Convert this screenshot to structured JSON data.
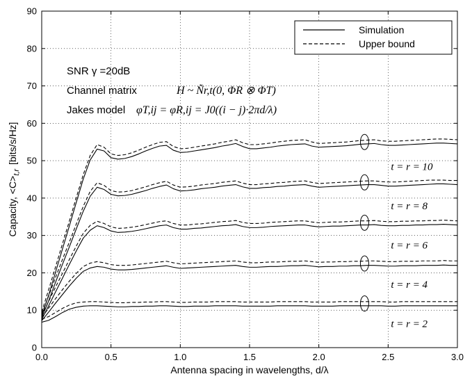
{
  "chart_data": {
    "type": "line",
    "xlabel": "Antenna spacing in wavelengths, d/λ",
    "ylabel": "Capacity, <C>t,r [bits/s/Hz]",
    "ylabel_parts": {
      "main": "Capacity, <C>",
      "sub": "t,r",
      "unit": "[bits/s/Hz]"
    },
    "xlim": [
      0,
      3
    ],
    "ylim": [
      0,
      90
    ],
    "xticks": [
      0,
      0.5,
      1,
      1.5,
      2,
      2.5,
      3
    ],
    "xtick_labels": [
      "0.0",
      "0.5",
      "1.0",
      "1.5",
      "2.0",
      "2.5",
      "3.0"
    ],
    "yticks": [
      0,
      10,
      20,
      30,
      40,
      50,
      60,
      70,
      80,
      90
    ],
    "ytick_labels": [
      "0",
      "10",
      "20",
      "30",
      "40",
      "50",
      "60",
      "70",
      "80",
      "90"
    ],
    "grid": true,
    "legend": {
      "position": "top-right",
      "entries": [
        {
          "label": "Simulation",
          "style": "solid"
        },
        {
          "label": "Upper bound",
          "style": "dashed"
        }
      ]
    },
    "annotations": {
      "snr": "SNR γ =20dB",
      "channel_prefix": "Channel matrix",
      "channel_math": "H ~ Ñr,t(0, ΦR ⊗ ΦT)",
      "jakes_prefix": "Jakes model",
      "jakes_math": "φT,ij = φR,ij = J0((i − j)·2πd/λ)"
    },
    "x": [
      0,
      0.05,
      0.1,
      0.15,
      0.2,
      0.25,
      0.3,
      0.35,
      0.4,
      0.45,
      0.5,
      0.55,
      0.6,
      0.65,
      0.7,
      0.75,
      0.8,
      0.85,
      0.9,
      0.95,
      1.0,
      1.05,
      1.1,
      1.15,
      1.2,
      1.25,
      1.3,
      1.35,
      1.4,
      1.45,
      1.5,
      1.55,
      1.6,
      1.65,
      1.7,
      1.75,
      1.8,
      1.85,
      1.9,
      1.95,
      2.0,
      2.05,
      2.1,
      2.15,
      2.2,
      2.25,
      2.3,
      2.35,
      2.4,
      2.45,
      2.5,
      2.55,
      2.6,
      2.65,
      2.7,
      2.75,
      2.8,
      2.85,
      2.9,
      2.95,
      3.0
    ],
    "series": [
      {
        "curve_label": "t = r = 10",
        "style": "solid",
        "values": [
          8.5,
          14.0,
          20.2,
          26.4,
          32.6,
          38.9,
          45.1,
          50.2,
          53.1,
          52.6,
          50.8,
          50.4,
          50.6,
          51.1,
          51.8,
          52.6,
          53.3,
          53.9,
          54.1,
          52.8,
          52.2,
          52.3,
          52.6,
          52.9,
          53.2,
          53.5,
          53.9,
          54.2,
          54.6,
          53.8,
          53.2,
          53.2,
          53.4,
          53.6,
          53.9,
          54.1,
          54.3,
          54.4,
          54.5,
          53.9,
          53.6,
          53.7,
          53.8,
          53.9,
          54.0,
          54.2,
          54.4,
          54.5,
          54.6,
          54.3,
          54.1,
          54.1,
          54.2,
          54.3,
          54.4,
          54.5,
          54.6,
          54.7,
          54.7,
          54.6,
          54.5
        ]
      },
      {
        "curve_label": "t = r = 10",
        "style": "dashed",
        "values": [
          9.5,
          15.5,
          21.6,
          27.8,
          33.9,
          40.2,
          46.3,
          51.4,
          54.3,
          53.6,
          51.8,
          51.4,
          51.6,
          52.1,
          52.8,
          53.6,
          54.3,
          54.9,
          55.1,
          53.8,
          53.2,
          53.3,
          53.6,
          53.9,
          54.2,
          54.5,
          54.9,
          55.2,
          55.6,
          54.8,
          54.3,
          54.3,
          54.5,
          54.7,
          55.0,
          55.2,
          55.4,
          55.5,
          55.6,
          55.0,
          54.6,
          54.7,
          54.8,
          54.9,
          55.0,
          55.2,
          55.4,
          55.5,
          55.6,
          55.3,
          55.2,
          55.2,
          55.3,
          55.4,
          55.5,
          55.6,
          55.7,
          55.8,
          55.8,
          55.7,
          55.6
        ]
      },
      {
        "curve_label": "t = r = 8",
        "style": "solid",
        "values": [
          8.0,
          12.5,
          17.5,
          22.3,
          27.0,
          31.8,
          36.5,
          40.5,
          42.9,
          42.3,
          41.0,
          40.6,
          40.7,
          41.0,
          41.5,
          42.0,
          42.6,
          43.1,
          43.5,
          42.5,
          41.9,
          42.0,
          42.2,
          42.5,
          42.7,
          42.9,
          43.2,
          43.4,
          43.6,
          43.0,
          42.6,
          42.6,
          42.8,
          42.9,
          43.1,
          43.2,
          43.4,
          43.5,
          43.6,
          43.2,
          42.9,
          43.0,
          43.1,
          43.2,
          43.3,
          43.4,
          43.5,
          43.6,
          43.6,
          43.4,
          43.2,
          43.2,
          43.3,
          43.4,
          43.5,
          43.6,
          43.7,
          43.8,
          43.8,
          43.7,
          43.6
        ]
      },
      {
        "curve_label": "t = r = 8",
        "style": "dashed",
        "values": [
          9.0,
          13.8,
          18.8,
          23.6,
          28.3,
          33.1,
          37.8,
          41.8,
          44.1,
          43.4,
          42.0,
          41.6,
          41.7,
          42.0,
          42.5,
          43.0,
          43.6,
          44.1,
          44.5,
          43.5,
          42.9,
          43.0,
          43.2,
          43.5,
          43.7,
          43.9,
          44.2,
          44.4,
          44.6,
          44.0,
          43.6,
          43.6,
          43.8,
          43.9,
          44.1,
          44.2,
          44.4,
          44.5,
          44.6,
          44.2,
          43.9,
          44.0,
          44.1,
          44.2,
          44.3,
          44.4,
          44.5,
          44.6,
          44.6,
          44.4,
          44.3,
          44.3,
          44.4,
          44.5,
          44.6,
          44.7,
          44.8,
          44.8,
          44.8,
          44.7,
          44.7
        ]
      },
      {
        "curve_label": "t = r = 6",
        "style": "solid",
        "values": [
          7.5,
          11.2,
          14.9,
          18.6,
          22.3,
          25.9,
          29.3,
          31.4,
          32.6,
          32.1,
          31.2,
          30.8,
          30.9,
          31.1,
          31.4,
          31.8,
          32.2,
          32.6,
          32.8,
          32.1,
          31.7,
          31.7,
          31.9,
          32.0,
          32.2,
          32.4,
          32.6,
          32.7,
          32.9,
          32.4,
          32.1,
          32.1,
          32.2,
          32.4,
          32.5,
          32.6,
          32.7,
          32.8,
          32.8,
          32.5,
          32.3,
          32.4,
          32.5,
          32.5,
          32.6,
          32.7,
          32.8,
          32.8,
          32.9,
          32.7,
          32.6,
          32.6,
          32.7,
          32.7,
          32.8,
          32.8,
          32.9,
          32.9,
          33.0,
          32.9,
          32.8
        ]
      },
      {
        "curve_label": "t = r = 6",
        "style": "dashed",
        "values": [
          8.5,
          12.4,
          16.2,
          19.9,
          23.6,
          27.2,
          30.6,
          32.7,
          33.8,
          33.2,
          32.3,
          31.9,
          32.0,
          32.2,
          32.5,
          32.9,
          33.3,
          33.7,
          33.9,
          33.2,
          32.8,
          32.8,
          33.0,
          33.1,
          33.3,
          33.5,
          33.7,
          33.8,
          34.0,
          33.5,
          33.2,
          33.2,
          33.3,
          33.5,
          33.6,
          33.7,
          33.8,
          33.9,
          33.9,
          33.6,
          33.4,
          33.5,
          33.6,
          33.6,
          33.7,
          33.8,
          33.9,
          33.9,
          34.0,
          33.8,
          33.7,
          33.7,
          33.8,
          33.8,
          33.9,
          33.9,
          34.0,
          34.0,
          34.1,
          34.0,
          33.9
        ]
      },
      {
        "curve_label": "t = r = 4",
        "style": "solid",
        "values": [
          7.2,
          9.5,
          11.9,
          14.2,
          16.5,
          18.6,
          20.4,
          21.3,
          21.7,
          21.5,
          21.0,
          20.8,
          20.8,
          20.9,
          21.1,
          21.3,
          21.5,
          21.7,
          21.9,
          21.5,
          21.2,
          21.3,
          21.4,
          21.5,
          21.6,
          21.7,
          21.8,
          21.9,
          22.0,
          21.7,
          21.5,
          21.5,
          21.6,
          21.7,
          21.7,
          21.8,
          21.9,
          21.9,
          22.0,
          21.8,
          21.6,
          21.7,
          21.7,
          21.8,
          21.8,
          21.9,
          21.9,
          22.0,
          22.0,
          21.9,
          21.8,
          21.8,
          21.9,
          21.9,
          21.9,
          22.0,
          22.0,
          22.0,
          22.1,
          22.0,
          22.0
        ]
      },
      {
        "curve_label": "t = r = 4",
        "style": "dashed",
        "values": [
          8.0,
          10.6,
          13.1,
          15.5,
          17.8,
          19.9,
          21.7,
          22.6,
          23.0,
          22.7,
          22.2,
          22.0,
          22.0,
          22.1,
          22.3,
          22.5,
          22.7,
          22.9,
          23.1,
          22.7,
          22.4,
          22.5,
          22.6,
          22.7,
          22.8,
          22.9,
          23.0,
          23.1,
          23.2,
          22.9,
          22.7,
          22.7,
          22.8,
          22.9,
          22.9,
          23.0,
          23.1,
          23.1,
          23.2,
          23.0,
          22.8,
          22.9,
          22.9,
          23.0,
          23.0,
          23.1,
          23.1,
          23.2,
          23.2,
          23.1,
          23.0,
          23.0,
          23.1,
          23.1,
          23.1,
          23.2,
          23.2,
          23.2,
          23.3,
          23.2,
          23.2
        ]
      },
      {
        "curve_label": "t = r = 2",
        "style": "solid",
        "values": [
          6.8,
          7.3,
          8.3,
          9.4,
          10.3,
          10.8,
          11.1,
          11.2,
          11.2,
          11.1,
          11.0,
          10.9,
          10.9,
          11.0,
          11.0,
          11.1,
          11.1,
          11.2,
          11.2,
          11.1,
          11.0,
          11.0,
          11.1,
          11.1,
          11.1,
          11.2,
          11.2,
          11.2,
          11.2,
          11.1,
          11.1,
          11.1,
          11.1,
          11.1,
          11.2,
          11.2,
          11.2,
          11.2,
          11.2,
          11.1,
          11.1,
          11.1,
          11.1,
          11.2,
          11.2,
          11.2,
          11.2,
          11.2,
          11.2,
          11.2,
          11.1,
          11.1,
          11.2,
          11.2,
          11.2,
          11.2,
          11.2,
          11.2,
          11.2,
          11.2,
          11.2
        ]
      },
      {
        "curve_label": "t = r = 2",
        "style": "dashed",
        "values": [
          7.6,
          8.3,
          9.4,
          10.5,
          11.4,
          12.0,
          12.2,
          12.3,
          12.3,
          12.2,
          12.1,
          12.0,
          12.0,
          12.1,
          12.1,
          12.2,
          12.2,
          12.3,
          12.3,
          12.2,
          12.1,
          12.1,
          12.2,
          12.2,
          12.2,
          12.3,
          12.3,
          12.3,
          12.3,
          12.2,
          12.2,
          12.2,
          12.2,
          12.2,
          12.3,
          12.3,
          12.3,
          12.3,
          12.3,
          12.2,
          12.2,
          12.2,
          12.2,
          12.3,
          12.3,
          12.3,
          12.3,
          12.3,
          12.3,
          12.3,
          12.2,
          12.2,
          12.3,
          12.3,
          12.3,
          12.3,
          12.3,
          12.3,
          12.3,
          12.3,
          12.3
        ]
      }
    ],
    "curve_labels": [
      {
        "text": "t = r = 10",
        "x": 2.52,
        "y": 47.5
      },
      {
        "text": "t = r = 8",
        "x": 2.52,
        "y": 37.0
      },
      {
        "text": "t = r = 6",
        "x": 2.52,
        "y": 26.5
      },
      {
        "text": "t = r = 4",
        "x": 2.52,
        "y": 16.0
      },
      {
        "text": "t = r = 2",
        "x": 2.52,
        "y": 5.5
      }
    ],
    "ellipse_markers": [
      {
        "x": 2.33,
        "y": 55.0
      },
      {
        "x": 2.33,
        "y": 44.2
      },
      {
        "x": 2.33,
        "y": 33.4
      },
      {
        "x": 2.33,
        "y": 22.5
      },
      {
        "x": 2.33,
        "y": 11.8
      }
    ]
  }
}
